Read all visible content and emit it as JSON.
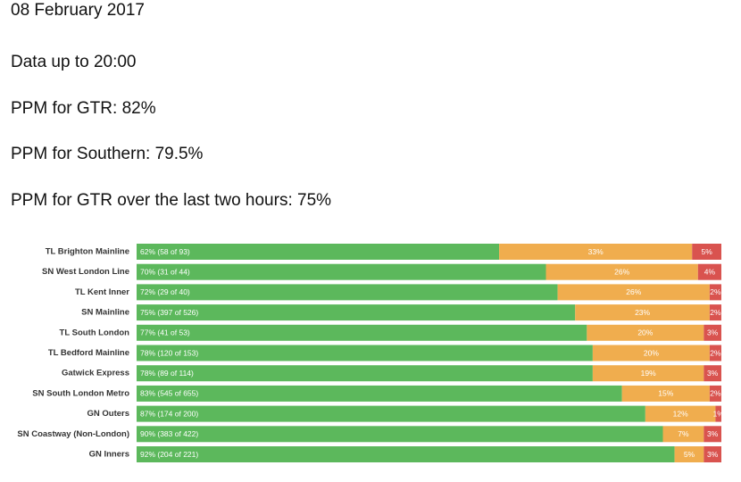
{
  "header": {
    "lines": [
      "08 February 2017",
      "Data up to 20:00",
      "PPM for GTR: 82%",
      "PPM for Southern: 79.5%",
      "PPM for GTR over the last two hours: 75%"
    ]
  },
  "chart_data": {
    "type": "stacked-bar-horizontal",
    "categories": [
      "TL Brighton Mainline",
      "SN West London Line",
      "TL Kent Inner",
      "SN Mainline",
      "TL South London",
      "TL Bedford Mainline",
      "Gatwick Express",
      "SN South London Metro",
      "GN Outers",
      "SN Coastway (Non-London)",
      "GN Inners"
    ],
    "xlim": [
      0,
      100
    ],
    "series": [
      {
        "color": "#5cb85c",
        "values": [
          62,
          70,
          72,
          75,
          77,
          78,
          78,
          83,
          87,
          90,
          92
        ],
        "value_labels": [
          "62% (58 of 93)",
          "70% (31 of 44)",
          "72% (29 of 40)",
          "75% (397 of 526)",
          "77% (41 of 53)",
          "78% (120 of 153)",
          "78% (89 of 114)",
          "83% (545 of 655)",
          "87% (174 of 200)",
          "90% (383 of 422)",
          "92% (204 of 221)"
        ]
      },
      {
        "color": "#f0ad4e",
        "values": [
          33,
          26,
          26,
          23,
          20,
          20,
          19,
          15,
          12,
          7,
          5
        ],
        "value_labels": [
          "33%",
          "26%",
          "26%",
          "23%",
          "20%",
          "20%",
          "19%",
          "15%",
          "12%",
          "7%",
          "5%"
        ]
      },
      {
        "color": "#d9534f",
        "values": [
          5,
          4,
          2,
          2,
          3,
          2,
          3,
          2,
          1,
          3,
          3
        ],
        "value_labels": [
          "5%",
          "4%",
          "2%",
          "2%",
          "3%",
          "2%",
          "3%",
          "2%",
          "1%",
          "3%",
          "3%"
        ]
      }
    ]
  }
}
